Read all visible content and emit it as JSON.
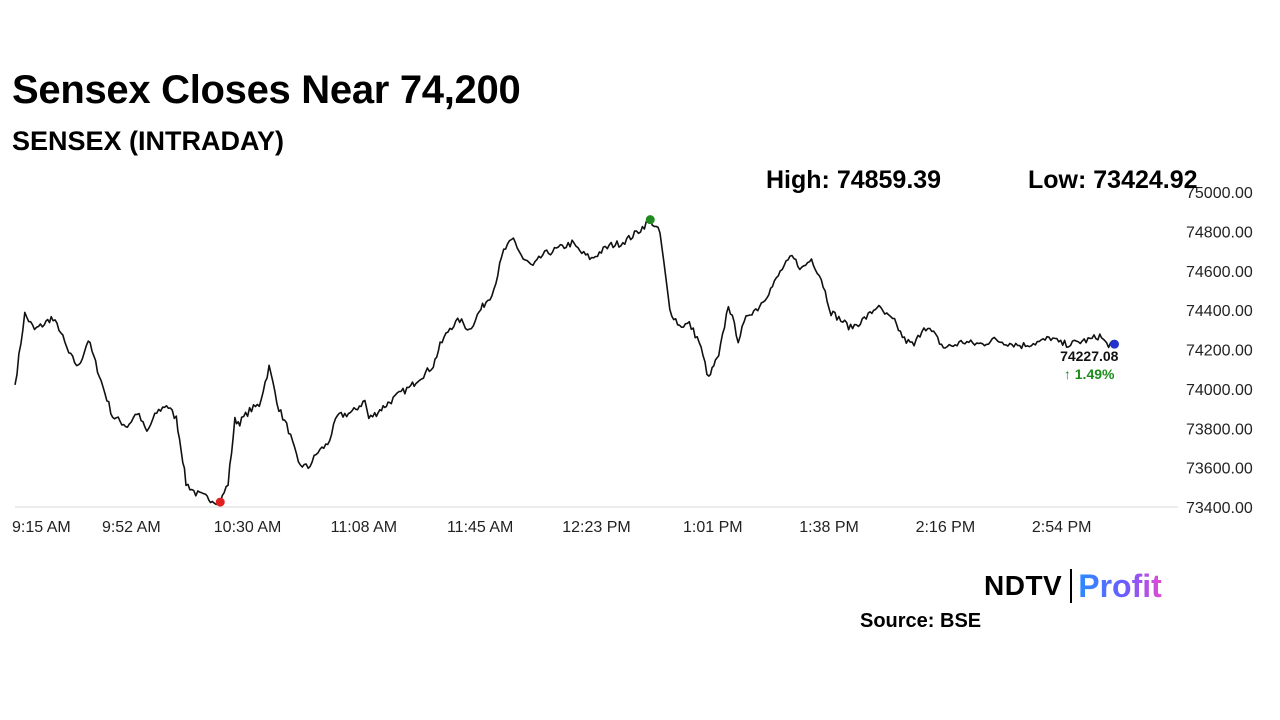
{
  "chart_data": {
    "type": "line",
    "title": "Sensex Closes Near 74,200",
    "subtitle": "SENSEX (INTRADAY)",
    "high_label": "High: 74859.39",
    "low_label": "Low: 73424.92",
    "high": 74859.39,
    "low": 73424.92,
    "last_value_label": "74227.08",
    "change_label": "↑ 1.49%",
    "last_value": 74227.08,
    "ylim": [
      73400,
      75000
    ],
    "y_ticks": [
      73400,
      73600,
      73800,
      74000,
      74200,
      74400,
      74600,
      74800,
      75000
    ],
    "y_tick_labels": [
      "73400.00",
      "73600.00",
      "73800.00",
      "74000.00",
      "74200.00",
      "74400.00",
      "74600.00",
      "74800.00",
      "75000.00"
    ],
    "x_tick_labels": [
      "9:15 AM",
      "9:52 AM",
      "10:30 AM",
      "11:08 AM",
      "11:45 AM",
      "12:23 PM",
      "1:01 PM",
      "1:38 PM",
      "2:16 PM",
      "2:54 PM"
    ],
    "x_minutes": [
      0,
      10,
      20,
      30,
      37,
      45,
      55,
      65,
      75,
      90,
      100,
      115,
      125,
      135,
      145,
      155,
      165,
      170,
      175,
      185,
      195,
      200,
      210,
      218,
      225,
      230,
      240,
      250,
      260,
      270,
      280,
      290,
      300,
      310,
      320,
      330,
      345,
      358,
      362,
      368,
      375,
      380,
      385,
      395,
      405,
      412,
      420,
      428,
      435,
      445,
      455,
      465,
      475,
      480,
      486,
      490,
      500,
      510,
      520,
      530,
      540,
      550,
      560,
      570,
      580,
      590,
      600,
      610,
      620,
      630,
      640,
      650,
      660,
      670,
      680,
      690,
      700,
      710,
      715,
      720,
      730,
      740,
      750,
      760,
      775,
      785,
      795,
      805,
      815,
      825,
      835,
      845,
      855,
      865,
      875,
      882,
      890,
      900,
      910,
      920,
      930,
      940,
      950,
      960,
      970,
      980,
      990,
      1000,
      1010,
      1020,
      1030,
      1040,
      1050,
      1060,
      1070,
      1080,
      1090,
      1100,
      1110,
      1117,
      1125
    ],
    "values": [
      74020,
      74380,
      74300,
      74330,
      74360,
      74310,
      74180,
      74110,
      74250,
      74010,
      73860,
      73810,
      73880,
      73780,
      73880,
      73920,
      73850,
      73700,
      73520,
      73470,
      73450,
      73440,
      73425,
      73520,
      73840,
      73830,
      73890,
      73920,
      74110,
      73900,
      73790,
      73620,
      73600,
      73680,
      73720,
      73860,
      73880,
      73940,
      73850,
      73870,
      73900,
      73920,
      73940,
      73980,
      74010,
      74050,
      74080,
      74120,
      74220,
      74310,
      74350,
      74300,
      74390,
      74430,
      74470,
      74510,
      74700,
      74760,
      74660,
      74620,
      74680,
      74700,
      74720,
      74740,
      74690,
      74660,
      74700,
      74730,
      74740,
      74770,
      74810,
      74859,
      74790,
      74400,
      74320,
      74330,
      74240,
      74050,
      74120,
      74160,
      74430,
      74250,
      74380,
      74410,
      74520,
      74610,
      74670,
      74610,
      74660,
      74560,
      74390,
      74350,
      74310,
      74340,
      74380,
      74420,
      74380,
      74340,
      74250,
      74220,
      74320,
      74280,
      74210,
      74220,
      74240,
      74230,
      74227,
      74250,
      74240,
      74230,
      74220,
      74230,
      74240,
      74260,
      74230,
      74227,
      74240,
      74250,
      74270,
      74227,
      74227
    ],
    "colors": {
      "line": "#111111",
      "high_marker": "#1f8a1f",
      "low_marker": "#e02020",
      "last_marker": "#2233cc",
      "change_text": "#1a8c1a",
      "baseline": "#d9d9d9"
    }
  },
  "branding": {
    "logo_ndtv": "NDTV",
    "logo_profit": "Profit",
    "source": "Source: BSE"
  }
}
